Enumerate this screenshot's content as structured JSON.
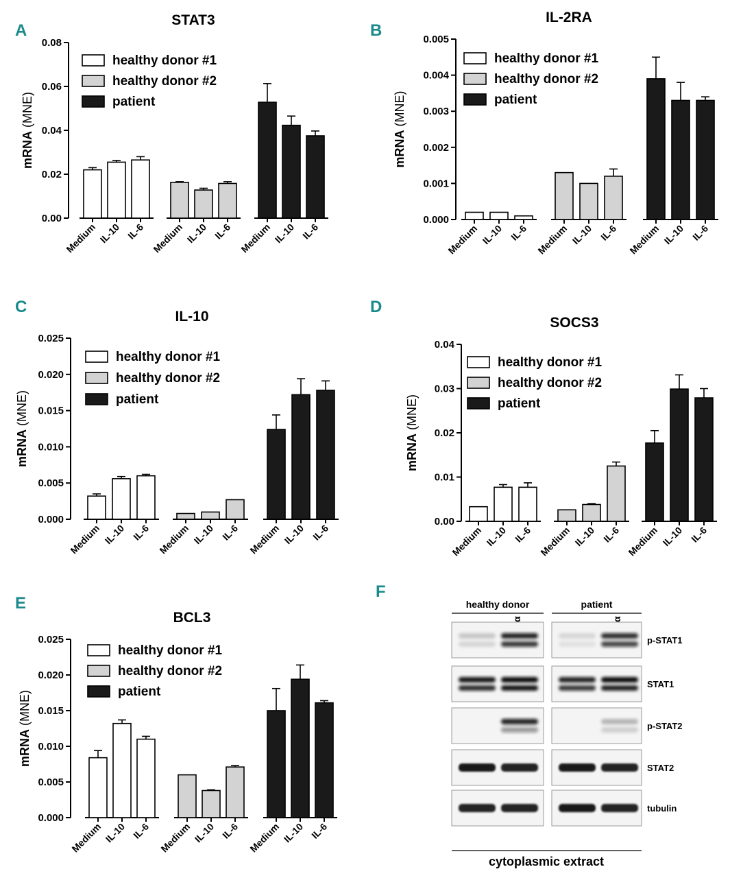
{
  "chart_data": [
    {
      "panel": "A",
      "type": "bar",
      "title": "STAT3",
      "ylabel_main": "mRNA",
      "ylabel_unit": "(MNE)",
      "ylim": [
        0,
        0.08
      ],
      "ytick_labels": [
        "0.00",
        "0.02",
        "0.04",
        "0.06",
        "0.08"
      ],
      "ytick_values": [
        0,
        0.02,
        0.04,
        0.06,
        0.08
      ],
      "categories": [
        "Medium",
        "IL-10",
        "IL-6"
      ],
      "legend": [
        "healthy donor #1",
        "healthy donor #2",
        "patient"
      ],
      "series": [
        {
          "name": "healthy donor #1",
          "color": "#ffffff",
          "values": [
            0.022,
            0.0255,
            0.0265
          ],
          "errors": [
            0.001,
            0.0008,
            0.0015
          ]
        },
        {
          "name": "healthy donor #2",
          "color": "#d3d3d3",
          "values": [
            0.0163,
            0.0128,
            0.0158
          ],
          "errors": [
            0.0003,
            0.0008,
            0.0008
          ]
        },
        {
          "name": "patient",
          "color": "#1a1a1a",
          "values": [
            0.0528,
            0.0423,
            0.0375
          ],
          "errors": [
            0.0085,
            0.0042,
            0.0022
          ]
        }
      ]
    },
    {
      "panel": "B",
      "type": "bar",
      "title": "IL-2RA",
      "ylabel_main": "mRNA",
      "ylabel_unit": "(MNE)",
      "ylim": [
        0,
        0.005
      ],
      "ytick_labels": [
        "0.000",
        "0.001",
        "0.002",
        "0.003",
        "0.004",
        "0.005"
      ],
      "ytick_values": [
        0,
        0.001,
        0.002,
        0.003,
        0.004,
        0.005
      ],
      "categories": [
        "Medium",
        "IL-10",
        "IL-6"
      ],
      "legend": [
        "healthy donor #1",
        "healthy donor #2",
        "patient"
      ],
      "series": [
        {
          "name": "healthy donor #1",
          "color": "#ffffff",
          "values": [
            0.0002,
            0.0002,
            0.0001
          ],
          "errors": [
            0,
            0,
            0
          ]
        },
        {
          "name": "healthy donor #2",
          "color": "#d3d3d3",
          "values": [
            0.0013,
            0.001,
            0.0012
          ],
          "errors": [
            0,
            0,
            0.0002
          ]
        },
        {
          "name": "patient",
          "color": "#1a1a1a",
          "values": [
            0.0039,
            0.0033,
            0.0033
          ],
          "errors": [
            0.0006,
            0.0005,
            0.0001
          ]
        }
      ]
    },
    {
      "panel": "C",
      "type": "bar",
      "title": "IL-10",
      "ylabel_main": "mRNA",
      "ylabel_unit": "(MNE)",
      "ylim": [
        0,
        0.025
      ],
      "ytick_labels": [
        "0.000",
        "0.005",
        "0.010",
        "0.015",
        "0.020",
        "0.025"
      ],
      "ytick_values": [
        0,
        0.005,
        0.01,
        0.015,
        0.02,
        0.025
      ],
      "categories": [
        "Medium",
        "IL-10",
        "IL-6"
      ],
      "legend": [
        "healthy donor #1",
        "healthy donor #2",
        "patient"
      ],
      "series": [
        {
          "name": "healthy donor #1",
          "color": "#ffffff",
          "values": [
            0.0032,
            0.0056,
            0.006
          ],
          "errors": [
            0.0003,
            0.0003,
            0.0002
          ]
        },
        {
          "name": "healthy donor #2",
          "color": "#d3d3d3",
          "values": [
            0.0008,
            0.001,
            0.0027
          ],
          "errors": [
            0,
            0,
            0
          ]
        },
        {
          "name": "patient",
          "color": "#1a1a1a",
          "values": [
            0.0124,
            0.0172,
            0.0178
          ],
          "errors": [
            0.002,
            0.0022,
            0.0013
          ]
        }
      ]
    },
    {
      "panel": "D",
      "type": "bar",
      "title": "SOCS3",
      "ylabel_main": "mRNA",
      "ylabel_unit": "(MNE)",
      "ylim": [
        0,
        0.04
      ],
      "ytick_labels": [
        "0.00",
        "0.01",
        "0.02",
        "0.03",
        "0.04"
      ],
      "ytick_values": [
        0,
        0.01,
        0.02,
        0.03,
        0.04
      ],
      "categories": [
        "Medium",
        "IL-10",
        "IL-6"
      ],
      "legend": [
        "healthy donor #1",
        "healthy donor #2",
        "patient"
      ],
      "series": [
        {
          "name": "healthy donor #1",
          "color": "#ffffff",
          "values": [
            0.0033,
            0.0077,
            0.0077
          ],
          "errors": [
            0,
            0.0006,
            0.001
          ]
        },
        {
          "name": "healthy donor #2",
          "color": "#d3d3d3",
          "values": [
            0.0026,
            0.0038,
            0.0125
          ],
          "errors": [
            0,
            0.0002,
            0.0009
          ]
        },
        {
          "name": "patient",
          "color": "#1a1a1a",
          "values": [
            0.0177,
            0.0299,
            0.0279
          ],
          "errors": [
            0.0028,
            0.0032,
            0.0021
          ]
        }
      ]
    },
    {
      "panel": "E",
      "type": "bar",
      "title": "BCL3",
      "ylabel_main": "mRNA",
      "ylabel_unit": "(MNE)",
      "ylim": [
        0,
        0.025
      ],
      "ytick_labels": [
        "0.000",
        "0.005",
        "0.010",
        "0.015",
        "0.020",
        "0.025"
      ],
      "ytick_values": [
        0,
        0.005,
        0.01,
        0.015,
        0.02,
        0.025
      ],
      "categories": [
        "Medium",
        "IL-10",
        "IL-6"
      ],
      "legend": [
        "healthy donor #1",
        "healthy donor #2",
        "patient"
      ],
      "series": [
        {
          "name": "healthy donor #1",
          "color": "#ffffff",
          "values": [
            0.0084,
            0.0132,
            0.011
          ],
          "errors": [
            0.001,
            0.0005,
            0.0004
          ]
        },
        {
          "name": "healthy donor #2",
          "color": "#d3d3d3",
          "values": [
            0.006,
            0.0038,
            0.0071
          ],
          "errors": [
            0,
            0.0001,
            0.0002
          ]
        },
        {
          "name": "patient",
          "color": "#1a1a1a",
          "values": [
            0.015,
            0.0194,
            0.0161
          ],
          "errors": [
            0.0031,
            0.002,
            0.0003
          ]
        }
      ]
    }
  ],
  "blot": {
    "panel": "F",
    "groups": [
      "healthy donor",
      "patient"
    ],
    "conditions": [
      "-",
      "IFNα"
    ],
    "rows": [
      "p-STAT1",
      "STAT1",
      "p-STAT2",
      "STAT2",
      "tubulin"
    ],
    "footer": "cytoplasmic extract"
  }
}
